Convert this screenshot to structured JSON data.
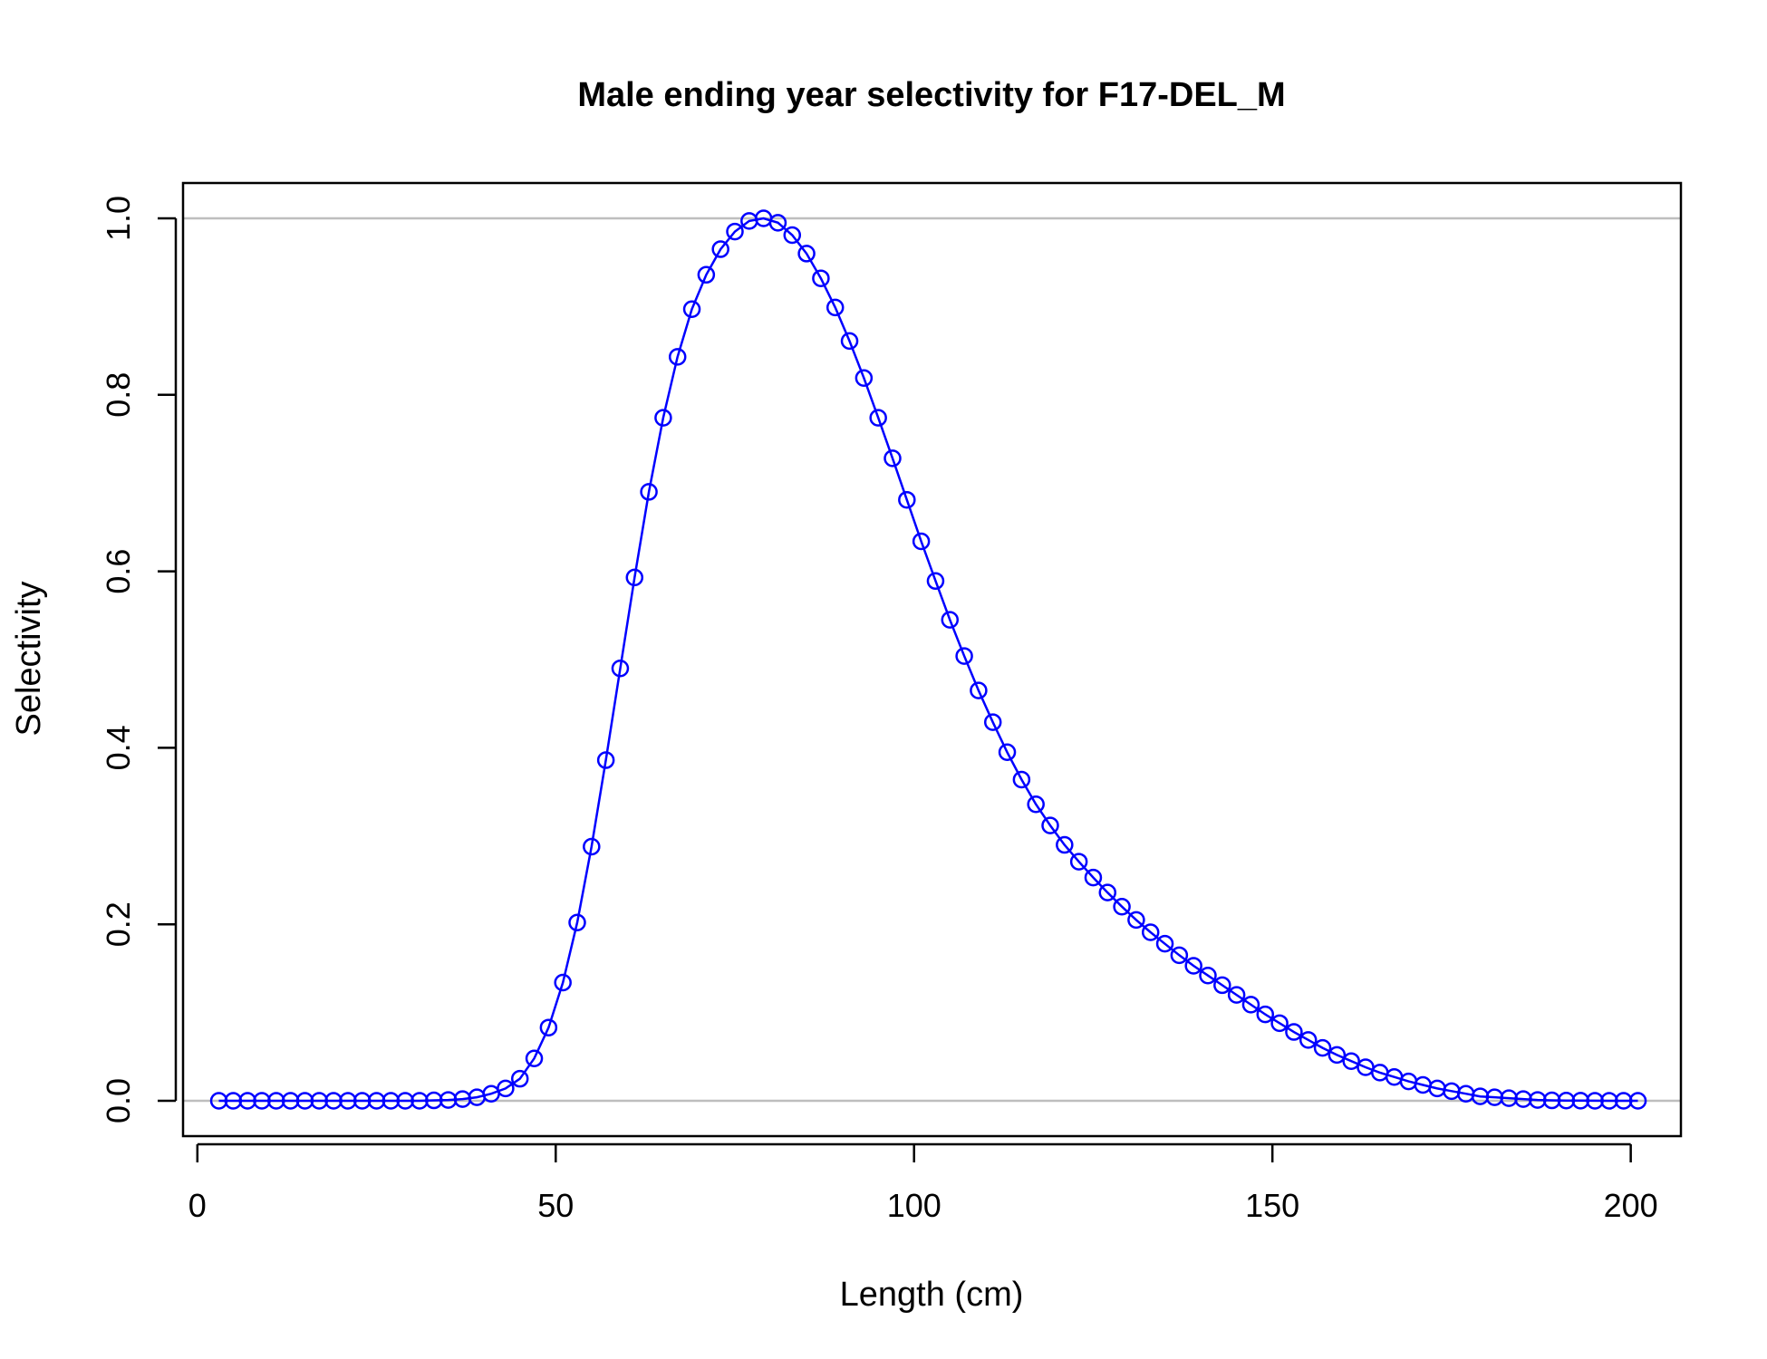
{
  "chart_data": {
    "type": "line",
    "title": "Male ending year selectivity for F17-DEL_M",
    "xlabel": "Length (cm)",
    "ylabel": "Selectivity",
    "xlim": [
      -2,
      207
    ],
    "ylim": [
      -0.04,
      1.04
    ],
    "xticks": [
      0,
      50,
      100,
      150,
      200
    ],
    "xtick_labels": [
      "0",
      "50",
      "100",
      "150",
      "200"
    ],
    "yticks": [
      0.0,
      0.2,
      0.4,
      0.6,
      0.8,
      1.0
    ],
    "ytick_labels": [
      "0.0",
      "0.2",
      "0.4",
      "0.6",
      "0.8",
      "1.0"
    ],
    "reference_lines_y": [
      0,
      1
    ],
    "grid": false,
    "legend": "none",
    "line_color": "#0000ff",
    "reference_line_color": "#bebebe",
    "series": [
      {
        "marker": "open-circle",
        "x": [
          3,
          5,
          7,
          9,
          11,
          13,
          15,
          17,
          19,
          21,
          23,
          25,
          27,
          29,
          31,
          33,
          35,
          37,
          39,
          41,
          43,
          45,
          47,
          49,
          51,
          53,
          55,
          57,
          59,
          61,
          63,
          65,
          67,
          69,
          71,
          73,
          75,
          77,
          79,
          81,
          83,
          85,
          87,
          89,
          91,
          93,
          95,
          97,
          99,
          101,
          103,
          105,
          107,
          109,
          111,
          113,
          115,
          117,
          119,
          121,
          123,
          125,
          127,
          129,
          131,
          133,
          135,
          137,
          139,
          141,
          143,
          145,
          147,
          149,
          151,
          153,
          155,
          157,
          159,
          161,
          163,
          165,
          167,
          169,
          171,
          173,
          175,
          177,
          179,
          181,
          183,
          185,
          187,
          189,
          191,
          193,
          195,
          197,
          199,
          201
        ],
        "y": [
          0,
          0,
          0,
          0,
          0,
          0,
          0,
          0,
          0,
          0,
          0,
          0,
          0,
          0,
          0,
          0.0005,
          0.001,
          0.002,
          0.004,
          0.008,
          0.014,
          0.025,
          0.048,
          0.083,
          0.134,
          0.202,
          0.288,
          0.386,
          0.49,
          0.593,
          0.69,
          0.774,
          0.843,
          0.897,
          0.936,
          0.965,
          0.985,
          0.997,
          1.0,
          0.995,
          0.981,
          0.96,
          0.932,
          0.899,
          0.861,
          0.819,
          0.774,
          0.728,
          0.681,
          0.634,
          0.589,
          0.545,
          0.504,
          0.465,
          0.429,
          0.395,
          0.364,
          0.336,
          0.312,
          0.29,
          0.271,
          0.253,
          0.236,
          0.22,
          0.205,
          0.191,
          0.178,
          0.165,
          0.153,
          0.142,
          0.131,
          0.12,
          0.109,
          0.098,
          0.088,
          0.078,
          0.069,
          0.06,
          0.052,
          0.045,
          0.038,
          0.032,
          0.027,
          0.022,
          0.018,
          0.014,
          0.011,
          0.008,
          0.005,
          0.004,
          0.003,
          0.002,
          0.001,
          0.0005,
          0.0003,
          0.0002,
          0.0001,
          0,
          0,
          0
        ]
      }
    ]
  }
}
